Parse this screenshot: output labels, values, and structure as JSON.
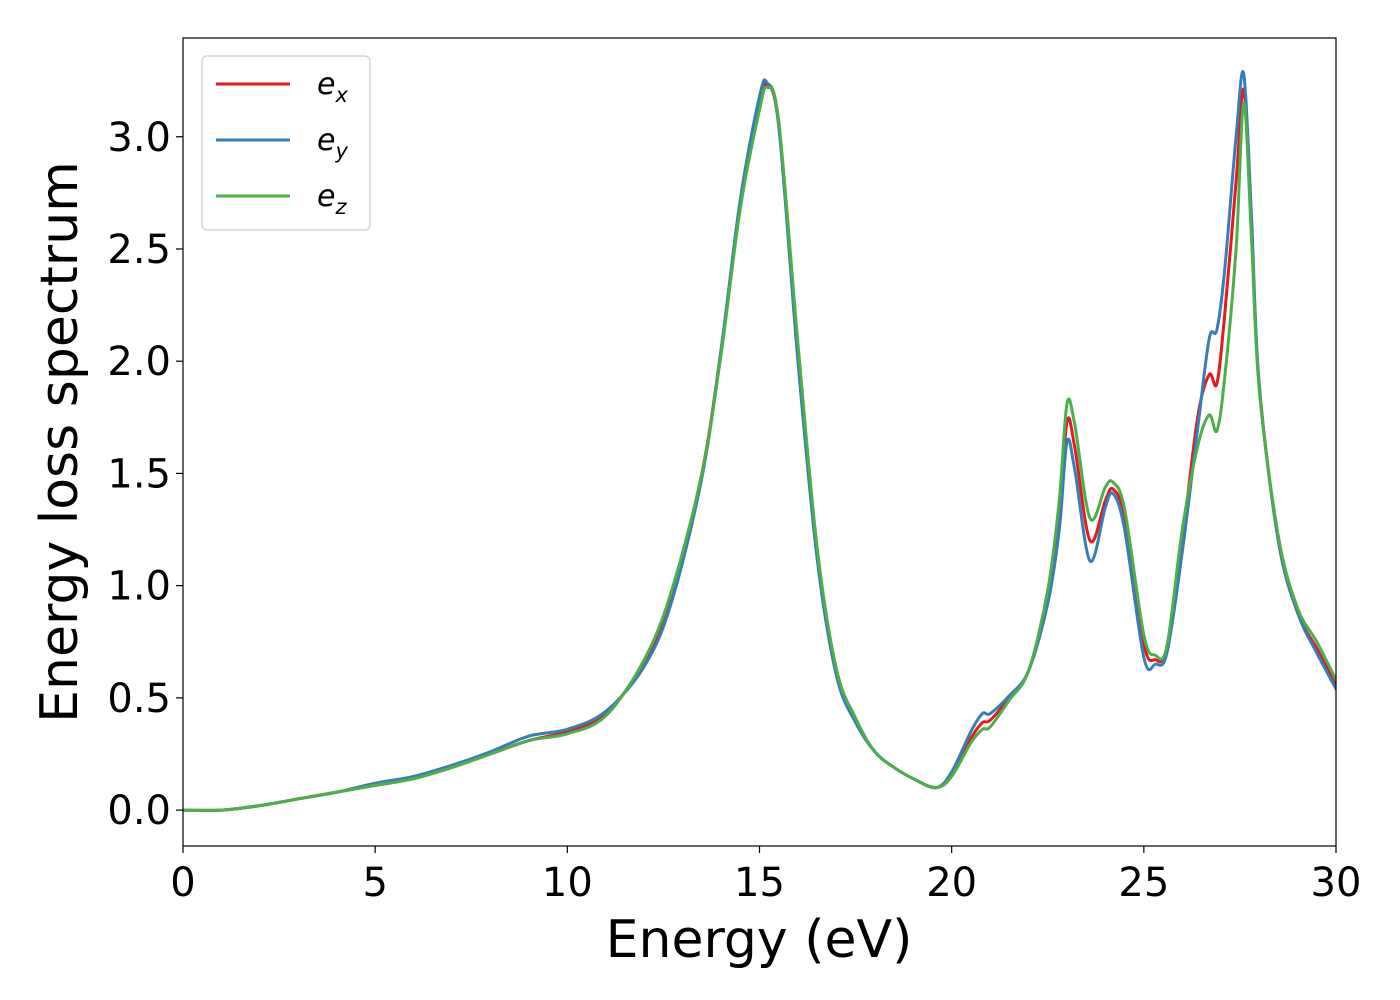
{
  "chart_data": {
    "type": "line",
    "xlabel": "Energy (eV)",
    "ylabel": "Energy loss spectrum",
    "xlim": [
      0,
      30
    ],
    "ylim": [
      -0.16,
      3.44
    ],
    "xticks": [
      0,
      5,
      10,
      15,
      20,
      25,
      30
    ],
    "yticks": [
      0.0,
      0.5,
      1.0,
      1.5,
      2.0,
      2.5,
      3.0
    ],
    "xtick_labels": [
      "0",
      "5",
      "10",
      "15",
      "20",
      "25",
      "30"
    ],
    "ytick_labels": [
      "0.0",
      "0.5",
      "1.0",
      "1.5",
      "2.0",
      "2.5",
      "3.0"
    ],
    "grid": false,
    "legend_position": "top-left",
    "series": [
      {
        "name": "e",
        "subscript": "x",
        "color": "#e41a1c",
        "x": [
          0,
          1,
          2,
          3,
          4,
          5,
          6,
          7,
          8,
          9,
          10,
          11,
          12,
          12.7,
          13.5,
          14,
          14.5,
          15,
          15.2,
          15.5,
          16,
          16.5,
          17,
          17.5,
          18,
          18.5,
          19,
          19.6,
          20,
          20.5,
          20.8,
          21,
          21.5,
          22,
          22.5,
          22.8,
          23,
          23.2,
          23.6,
          24,
          24.2,
          24.5,
          25,
          25.3,
          25.6,
          26,
          26.4,
          26.7,
          26.9,
          27.1,
          27.4,
          27.6,
          27.8,
          28,
          28.5,
          29,
          29.5,
          30
        ],
        "y": [
          0.0,
          0.0,
          0.02,
          0.05,
          0.08,
          0.11,
          0.14,
          0.19,
          0.25,
          0.31,
          0.35,
          0.43,
          0.66,
          0.95,
          1.5,
          2.05,
          2.7,
          3.15,
          3.23,
          3.05,
          2.05,
          1.15,
          0.62,
          0.4,
          0.26,
          0.19,
          0.14,
          0.1,
          0.16,
          0.32,
          0.39,
          0.4,
          0.5,
          0.62,
          0.95,
          1.3,
          1.73,
          1.62,
          1.2,
          1.38,
          1.43,
          1.3,
          0.74,
          0.67,
          0.72,
          1.2,
          1.75,
          1.94,
          1.9,
          2.2,
          2.8,
          3.21,
          2.6,
          1.9,
          1.2,
          0.88,
          0.72,
          0.56
        ]
      },
      {
        "name": "e",
        "subscript": "y",
        "color": "#377eb8",
        "x": [
          0,
          1,
          2,
          3,
          4,
          5,
          6,
          7,
          8,
          9,
          10,
          11,
          12,
          12.7,
          13.5,
          14,
          14.5,
          15,
          15.2,
          15.5,
          16,
          16.5,
          17,
          17.5,
          18,
          18.5,
          19,
          19.6,
          20,
          20.5,
          20.8,
          21,
          21.5,
          22,
          22.5,
          22.8,
          23,
          23.2,
          23.6,
          24,
          24.2,
          24.5,
          25,
          25.3,
          25.6,
          26,
          26.4,
          26.7,
          26.9,
          27.1,
          27.4,
          27.6,
          27.8,
          28,
          28.5,
          29,
          29.5,
          30
        ],
        "y": [
          0.0,
          0.0,
          0.02,
          0.05,
          0.08,
          0.12,
          0.15,
          0.2,
          0.26,
          0.33,
          0.36,
          0.44,
          0.64,
          0.92,
          1.48,
          2.05,
          2.72,
          3.18,
          3.24,
          3.05,
          2.0,
          1.12,
          0.6,
          0.39,
          0.26,
          0.19,
          0.14,
          0.1,
          0.17,
          0.35,
          0.43,
          0.43,
          0.51,
          0.62,
          0.92,
          1.25,
          1.64,
          1.52,
          1.11,
          1.35,
          1.41,
          1.25,
          0.68,
          0.65,
          0.7,
          1.15,
          1.7,
          2.1,
          2.14,
          2.4,
          3.0,
          3.28,
          2.65,
          1.9,
          1.2,
          0.88,
          0.7,
          0.54
        ]
      },
      {
        "name": "e",
        "subscript": "z",
        "color": "#4daf4a",
        "x": [
          0,
          1,
          2,
          3,
          4,
          5,
          6,
          7,
          8,
          9,
          10,
          11,
          12,
          12.7,
          13.5,
          14,
          14.5,
          15,
          15.2,
          15.5,
          16,
          16.5,
          17,
          17.5,
          18,
          18.5,
          19,
          19.6,
          20,
          20.5,
          20.8,
          21,
          21.5,
          22,
          22.5,
          22.8,
          23,
          23.2,
          23.6,
          24,
          24.2,
          24.5,
          25,
          25.3,
          25.6,
          26,
          26.4,
          26.7,
          26.9,
          27.1,
          27.4,
          27.6,
          27.8,
          28,
          28.5,
          29,
          29.5,
          30
        ],
        "y": [
          0.0,
          0.0,
          0.02,
          0.05,
          0.08,
          0.11,
          0.14,
          0.19,
          0.25,
          0.31,
          0.34,
          0.42,
          0.67,
          0.97,
          1.5,
          2.03,
          2.68,
          3.12,
          3.22,
          3.07,
          2.08,
          1.17,
          0.63,
          0.41,
          0.26,
          0.19,
          0.14,
          0.1,
          0.15,
          0.3,
          0.36,
          0.37,
          0.49,
          0.62,
          0.98,
          1.38,
          1.81,
          1.72,
          1.3,
          1.44,
          1.46,
          1.34,
          0.78,
          0.69,
          0.73,
          1.25,
          1.62,
          1.76,
          1.69,
          1.92,
          2.5,
          3.15,
          2.55,
          1.88,
          1.22,
          0.9,
          0.75,
          0.58
        ]
      }
    ]
  }
}
